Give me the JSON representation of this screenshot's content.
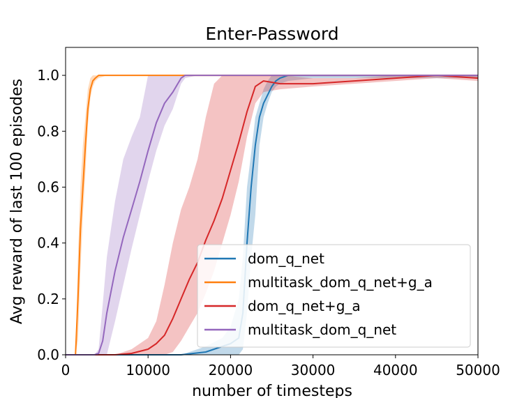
{
  "chart_data": {
    "type": "line",
    "title": "Enter-Password",
    "xlabel": "number of timesteps",
    "ylabel": "Avg reward of last 100 episodes",
    "xlim": [
      0,
      50000
    ],
    "ylim": [
      0,
      1.1
    ],
    "xticks": [
      0,
      10000,
      20000,
      30000,
      40000,
      50000
    ],
    "xtick_labels": [
      "0",
      "10000",
      "20000",
      "30000",
      "40000",
      "50000"
    ],
    "yticks": [
      0,
      0.2,
      0.4,
      0.6,
      0.8,
      1.0
    ],
    "ytick_labels": [
      "0.0",
      "0.2",
      "0.4",
      "0.6",
      "0.8",
      "1.0"
    ],
    "grid": false,
    "legend_position": "lower-right",
    "series": [
      {
        "name": "dom_q_net",
        "color": "#1f77b4",
        "x": [
          0,
          14000,
          17000,
          19000,
          20000,
          21000,
          21500,
          22000,
          22500,
          23000,
          23500,
          24000,
          24500,
          25000,
          25500,
          26000,
          27000,
          30000,
          35000,
          40000,
          45000,
          50000
        ],
        "y": [
          0,
          0,
          0.01,
          0.03,
          0.04,
          0.06,
          0.15,
          0.4,
          0.6,
          0.75,
          0.85,
          0.9,
          0.93,
          0.96,
          0.98,
          0.99,
          1.0,
          1.0,
          1.0,
          1.0,
          1.0,
          1.0
        ],
        "lower": [
          0,
          0,
          0,
          0,
          0,
          0,
          0.02,
          0.15,
          0.35,
          0.5,
          0.75,
          0.85,
          0.9,
          0.94,
          0.96,
          0.97,
          0.98,
          0.99,
          0.99,
          0.99,
          0.99,
          0.99
        ],
        "upper": [
          0,
          0,
          0.03,
          0.06,
          0.1,
          0.2,
          0.35,
          0.6,
          0.72,
          0.85,
          0.9,
          0.95,
          0.98,
          1.0,
          1.0,
          1.0,
          1.0,
          1.0,
          1.0,
          1.0,
          1.0,
          1.0
        ]
      },
      {
        "name": "multitask_dom_q_net+g_a",
        "color": "#ff7f0e",
        "x": [
          0,
          1200,
          1500,
          1800,
          2100,
          2400,
          2700,
          3000,
          3300,
          3600,
          4000,
          4500,
          5000,
          6000,
          10000,
          20000,
          30000,
          40000,
          50000
        ],
        "y": [
          0,
          0,
          0.2,
          0.45,
          0.6,
          0.75,
          0.88,
          0.95,
          0.98,
          0.99,
          1.0,
          1.0,
          1.0,
          1.0,
          1.0,
          1.0,
          1.0,
          1.0,
          1.0
        ],
        "lower": [
          0,
          0,
          0.05,
          0.3,
          0.5,
          0.65,
          0.82,
          0.92,
          0.96,
          0.98,
          0.99,
          0.995,
          1.0,
          1.0,
          1.0,
          1.0,
          1.0,
          1.0,
          1.0
        ],
        "upper": [
          0,
          0,
          0.35,
          0.6,
          0.75,
          0.85,
          0.95,
          0.99,
          1.0,
          1.0,
          1.0,
          1.0,
          1.0,
          1.0,
          1.0,
          1.0,
          1.0,
          1.0,
          1.0
        ]
      },
      {
        "name": "dom_q_net+g_a",
        "color": "#d62728",
        "x": [
          0,
          6000,
          8000,
          10000,
          11000,
          12000,
          13000,
          14000,
          15000,
          16000,
          17000,
          18000,
          19000,
          20000,
          21000,
          22000,
          23000,
          24000,
          26000,
          30000,
          35000,
          40000,
          45000,
          50000
        ],
        "y": [
          0,
          0,
          0.005,
          0.02,
          0.04,
          0.07,
          0.13,
          0.2,
          0.27,
          0.33,
          0.41,
          0.48,
          0.56,
          0.66,
          0.76,
          0.87,
          0.96,
          0.98,
          0.97,
          0.97,
          0.98,
          0.99,
          1.0,
          0.99
        ],
        "lower": [
          0,
          0,
          0,
          0,
          0,
          0,
          0.01,
          0.05,
          0.1,
          0.15,
          0.22,
          0.3,
          0.4,
          0.5,
          0.62,
          0.78,
          0.9,
          0.94,
          0.95,
          0.96,
          0.97,
          0.98,
          0.99,
          0.98
        ],
        "upper": [
          0,
          0,
          0.02,
          0.06,
          0.12,
          0.25,
          0.4,
          0.52,
          0.6,
          0.7,
          0.85,
          0.97,
          1.0,
          1.0,
          1.0,
          1.0,
          1.0,
          1.0,
          1.0,
          0.99,
          0.99,
          1.0,
          1.0,
          1.0
        ]
      },
      {
        "name": "multitask_dom_q_net",
        "color": "#9467bd",
        "x": [
          0,
          3500,
          4000,
          4500,
          5000,
          6000,
          7000,
          8000,
          9000,
          10000,
          11000,
          12000,
          13000,
          14000,
          14500,
          16000,
          20000,
          30000,
          40000,
          50000
        ],
        "y": [
          0,
          0,
          0.005,
          0.05,
          0.15,
          0.3,
          0.42,
          0.52,
          0.62,
          0.73,
          0.83,
          0.9,
          0.94,
          0.99,
          1.0,
          1.0,
          1.0,
          1.0,
          1.0,
          1.0
        ],
        "lower": [
          0,
          0,
          0,
          0,
          0,
          0.12,
          0.25,
          0.38,
          0.5,
          0.62,
          0.73,
          0.82,
          0.88,
          0.97,
          0.99,
          1.0,
          1.0,
          1.0,
          1.0,
          1.0
        ],
        "upper": [
          0,
          0,
          0.02,
          0.18,
          0.35,
          0.55,
          0.7,
          0.78,
          0.85,
          1.0,
          1.0,
          1.0,
          1.0,
          1.0,
          1.0,
          1.0,
          1.0,
          1.0,
          1.0,
          1.0
        ]
      }
    ]
  }
}
